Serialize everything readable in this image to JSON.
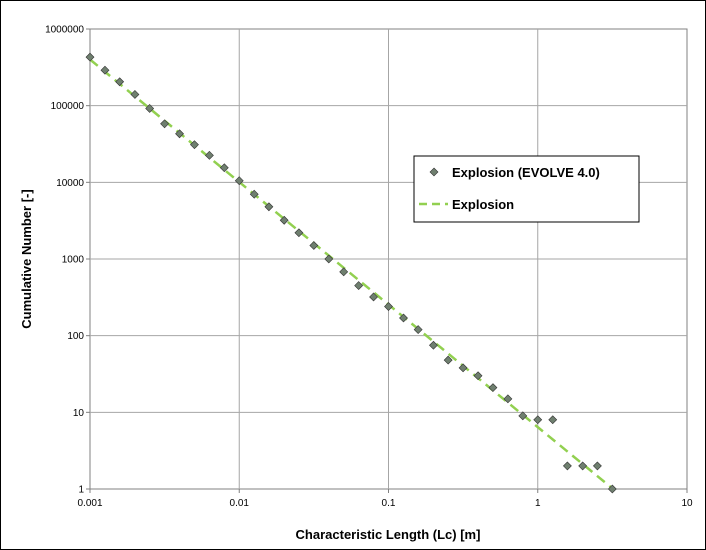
{
  "chart_data": {
    "type": "scatter",
    "xlabel": "Characteristic Length (Lc) [m]",
    "ylabel": "Cumulative Number [-]",
    "x_scale": "log",
    "y_scale": "log",
    "xlim": [
      0.001,
      10
    ],
    "ylim": [
      1,
      1000000
    ],
    "grid": true,
    "legend_position": "center-right",
    "x_ticks": [
      "0.001",
      "0.01",
      "0.1",
      "1",
      "10"
    ],
    "y_ticks": [
      "1",
      "10",
      "100",
      "1000",
      "10000",
      "100000",
      "1000000"
    ],
    "series": [
      {
        "name": "Explosion (EVOLVE 4.0)",
        "kind": "markers",
        "marker": "diamond",
        "color": "#6f7f6f",
        "points": [
          [
            0.001,
            430000
          ],
          [
            0.00126,
            290000
          ],
          [
            0.00158,
            205000
          ],
          [
            0.002,
            140000
          ],
          [
            0.00251,
            92000
          ],
          [
            0.00316,
            58000
          ],
          [
            0.00398,
            43000
          ],
          [
            0.00501,
            31000
          ],
          [
            0.00631,
            22500
          ],
          [
            0.00794,
            15500
          ],
          [
            0.01,
            10500
          ],
          [
            0.0126,
            7000
          ],
          [
            0.0158,
            4800
          ],
          [
            0.02,
            3200
          ],
          [
            0.0251,
            2200
          ],
          [
            0.0316,
            1500
          ],
          [
            0.0398,
            1000
          ],
          [
            0.0501,
            680
          ],
          [
            0.0631,
            450
          ],
          [
            0.0794,
            320
          ],
          [
            0.1,
            240
          ],
          [
            0.126,
            170
          ],
          [
            0.158,
            120
          ],
          [
            0.2,
            75
          ],
          [
            0.251,
            48
          ],
          [
            0.316,
            38
          ],
          [
            0.398,
            30
          ],
          [
            0.501,
            21
          ],
          [
            0.631,
            15
          ],
          [
            0.794,
            9
          ],
          [
            1.0,
            8
          ],
          [
            1.26,
            8
          ],
          [
            1.58,
            2
          ],
          [
            2.0,
            2
          ],
          [
            2.51,
            2
          ],
          [
            3.16,
            1
          ]
        ]
      },
      {
        "name": "Explosion",
        "kind": "dashed-line",
        "color": "#92d050",
        "points": [
          [
            0.001,
            400000
          ],
          [
            3.2,
            1
          ]
        ]
      }
    ]
  }
}
